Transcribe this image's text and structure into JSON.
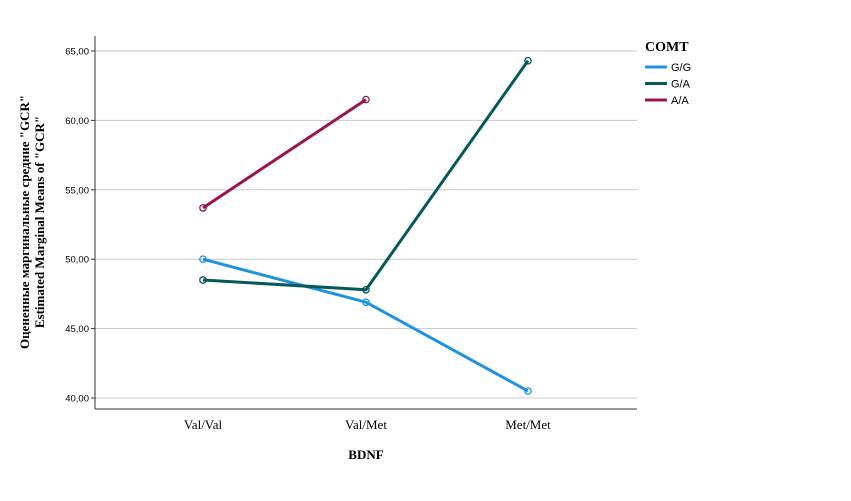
{
  "chart_data": {
    "type": "line",
    "categories": [
      "Val/Val",
      "Val/Met",
      "Met/Met"
    ],
    "xlabel": "BDNF",
    "ylabel_lines": [
      "Оцененные маргинальные средние \"GCR\"",
      "Estimated Marginal Means of \"GCR\""
    ],
    "ylim": [
      39,
      66
    ],
    "yticks": [
      40,
      45,
      50,
      55,
      60,
      65
    ],
    "ytick_labels": [
      "40,00",
      "45,00",
      "50,00",
      "55,00",
      "60,00",
      "65,00"
    ],
    "grid": true,
    "legend_title": "COMT",
    "legend_position": "top-right",
    "series": [
      {
        "name": "G/G",
        "color": "#1f93e2",
        "values": [
          50.0,
          46.9,
          40.5
        ]
      },
      {
        "name": "G/A",
        "color": "#06595a",
        "values": [
          48.5,
          47.8,
          64.3
        ]
      },
      {
        "name": "A/A",
        "color": "#96164f",
        "values": [
          53.7,
          61.5,
          null
        ]
      }
    ]
  }
}
